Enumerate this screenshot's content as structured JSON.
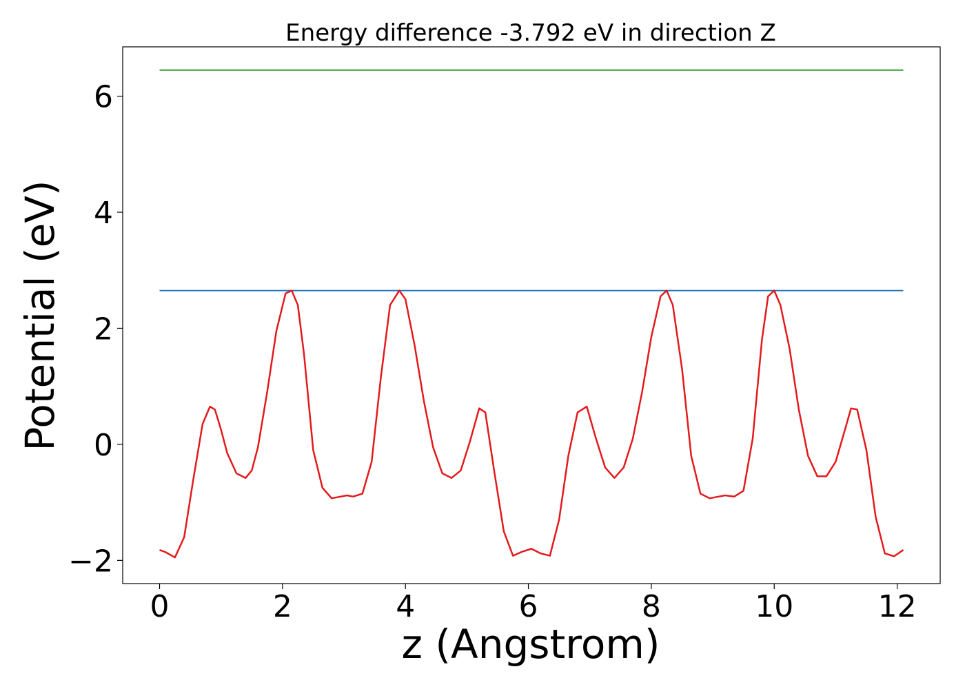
{
  "chart_data": {
    "type": "line",
    "title": "Energy difference -3.792 eV in direction Z",
    "xlabel": "z (Angstrom)",
    "ylabel": "Potential (eV)",
    "xlim": [
      -0.6,
      12.7
    ],
    "ylim": [
      -2.4,
      6.85
    ],
    "xticks": [
      0,
      2,
      4,
      6,
      8,
      10,
      12
    ],
    "xtick_labels": [
      "0",
      "2",
      "4",
      "6",
      "8",
      "10",
      "12"
    ],
    "yticks": [
      -2,
      0,
      2,
      4,
      6
    ],
    "ytick_labels": [
      "−2",
      "0",
      "2",
      "4",
      "6"
    ],
    "grid": false,
    "series": [
      {
        "color": "#2ca02c",
        "style": "horizontal",
        "x": [
          0,
          12.1
        ],
        "y": [
          6.45,
          6.45
        ]
      },
      {
        "color": "#1f77b4",
        "style": "horizontal",
        "x": [
          0,
          12.1
        ],
        "y": [
          2.65,
          2.65
        ]
      },
      {
        "color": "#e31a1c",
        "style": "curve",
        "x": [
          0.0,
          0.1,
          0.25,
          0.4,
          0.55,
          0.7,
          0.82,
          0.9,
          1.0,
          1.1,
          1.25,
          1.4,
          1.5,
          1.6,
          1.75,
          1.9,
          2.05,
          2.15,
          2.25,
          2.35,
          2.5,
          2.65,
          2.8,
          2.95,
          3.05,
          3.15,
          3.3,
          3.45,
          3.6,
          3.75,
          3.9,
          4.0,
          4.15,
          4.3,
          4.45,
          4.6,
          4.75,
          4.9,
          5.05,
          5.2,
          5.3,
          5.45,
          5.6,
          5.75,
          5.9,
          6.05,
          6.2,
          6.35,
          6.5,
          6.65,
          6.8,
          6.95,
          7.1,
          7.25,
          7.4,
          7.55,
          7.7,
          7.85,
          8.0,
          8.15,
          8.25,
          8.35,
          8.5,
          8.65,
          8.8,
          8.95,
          9.1,
          9.2,
          9.35,
          9.5,
          9.65,
          9.8,
          9.9,
          10.0,
          10.1,
          10.25,
          10.4,
          10.55,
          10.7,
          10.85,
          11.0,
          11.15,
          11.25,
          11.35,
          11.5,
          11.65,
          11.8,
          11.95,
          12.1
        ],
        "y": [
          -1.82,
          -1.86,
          -1.95,
          -1.6,
          -0.6,
          0.35,
          0.65,
          0.6,
          0.25,
          -0.15,
          -0.5,
          -0.58,
          -0.45,
          -0.05,
          0.9,
          1.95,
          2.6,
          2.65,
          2.4,
          1.55,
          -0.1,
          -0.75,
          -0.93,
          -0.9,
          -0.88,
          -0.9,
          -0.85,
          -0.3,
          1.15,
          2.4,
          2.65,
          2.5,
          1.7,
          0.75,
          -0.05,
          -0.5,
          -0.58,
          -0.45,
          0.05,
          0.62,
          0.55,
          -0.5,
          -1.5,
          -1.92,
          -1.85,
          -1.8,
          -1.88,
          -1.92,
          -1.3,
          -0.2,
          0.55,
          0.65,
          0.1,
          -0.4,
          -0.58,
          -0.4,
          0.1,
          0.9,
          1.85,
          2.55,
          2.65,
          2.4,
          1.3,
          -0.2,
          -0.85,
          -0.93,
          -0.9,
          -0.88,
          -0.9,
          -0.8,
          0.1,
          1.8,
          2.55,
          2.65,
          2.4,
          1.65,
          0.6,
          -0.2,
          -0.55,
          -0.55,
          -0.3,
          0.25,
          0.62,
          0.6,
          -0.1,
          -1.25,
          -1.88,
          -1.93,
          -1.82
        ]
      }
    ]
  }
}
